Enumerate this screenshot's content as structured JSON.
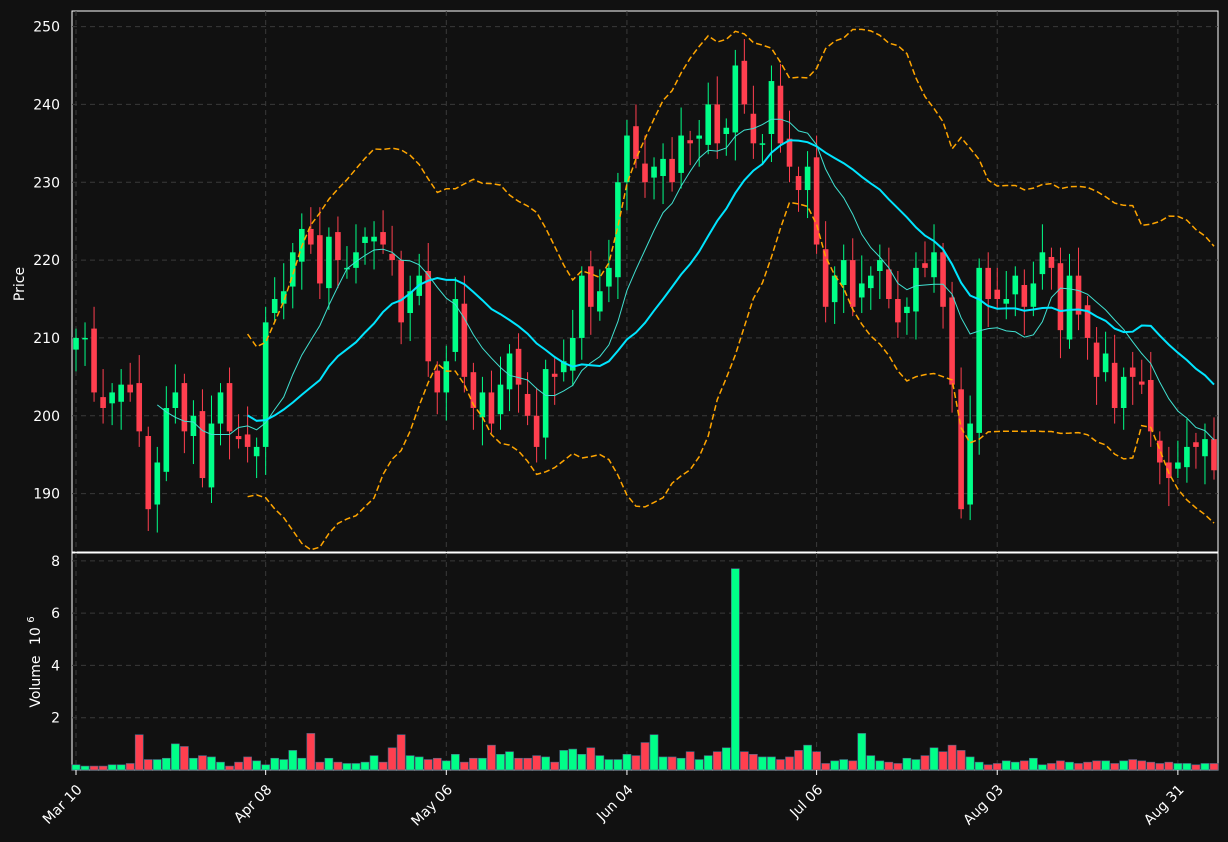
{
  "chart_data": [
    {
      "type": "candlestick",
      "panel": "price",
      "ylabel": "Price",
      "ylim": [
        182.5,
        252
      ],
      "yticks": [
        190,
        200,
        210,
        220,
        230,
        240,
        250
      ],
      "xtick_labels": [
        "Mar 10",
        "Apr 08",
        "May 06",
        "Jun 04",
        "Jul 06",
        "Aug 03",
        "Aug 31"
      ],
      "xtick_indices": [
        0,
        21,
        41,
        61,
        82,
        102,
        122
      ],
      "grid": true,
      "colors": {
        "up": "#00ff88",
        "down": "#ff3f4f",
        "ma_fast": "#40e0d0",
        "ma_slow": "#00e5ff",
        "bands": "#ffa500"
      },
      "ohlc_close_series": [
        210,
        210,
        203,
        201,
        203,
        204,
        203,
        198,
        188,
        194,
        201,
        203,
        198,
        200,
        192,
        199,
        203,
        198,
        197,
        196,
        196,
        212,
        215,
        216,
        221,
        224,
        222,
        217,
        223,
        220,
        219,
        221,
        223,
        223,
        222,
        220,
        212,
        216,
        218,
        207,
        203,
        207,
        215,
        205,
        201,
        203,
        199,
        204,
        208,
        204,
        200,
        196,
        206,
        205,
        207,
        210,
        218,
        214,
        216,
        219,
        230,
        236,
        233,
        230,
        232,
        233,
        230,
        236,
        235,
        236,
        240,
        235,
        237,
        245,
        240,
        235,
        235,
        243,
        235,
        232,
        229,
        232,
        222,
        214,
        218,
        220,
        214,
        217,
        218,
        220,
        215,
        212,
        214,
        219,
        219,
        221,
        214,
        204,
        188,
        199,
        219,
        215,
        215,
        215,
        218,
        214,
        217,
        221,
        219,
        211,
        218,
        213,
        210,
        205,
        208,
        201,
        205,
        205,
        204,
        198,
        194,
        192,
        194,
        196,
        196,
        197,
        193
      ]
    },
    {
      "type": "bar",
      "panel": "volume",
      "ylabel": "Volume",
      "yscale_label": "10",
      "yscale_exponent": "6",
      "ylim": [
        0,
        8.3
      ],
      "yticks": [
        2,
        4,
        6,
        8
      ],
      "grid": true,
      "volumes": [
        0.2,
        0.15,
        0.15,
        0.15,
        0.2,
        0.2,
        0.25,
        1.35,
        0.4,
        0.4,
        0.45,
        1.0,
        0.9,
        0.45,
        0.55,
        0.5,
        0.3,
        0.15,
        0.3,
        0.5,
        0.35,
        0.2,
        0.45,
        0.4,
        0.75,
        0.45,
        1.4,
        0.3,
        0.45,
        0.3,
        0.25,
        0.25,
        0.3,
        0.55,
        0.3,
        0.85,
        1.35,
        0.55,
        0.5,
        0.4,
        0.45,
        0.35,
        0.6,
        0.3,
        0.45,
        0.45,
        0.95,
        0.6,
        0.7,
        0.45,
        0.45,
        0.55,
        0.5,
        0.3,
        0.75,
        0.8,
        0.6,
        0.85,
        0.55,
        0.4,
        0.4,
        0.6,
        0.55,
        1.05,
        1.35,
        0.5,
        0.5,
        0.45,
        0.7,
        0.4,
        0.55,
        0.7,
        0.85,
        7.7,
        0.7,
        0.6,
        0.5,
        0.5,
        0.4,
        0.5,
        0.75,
        0.95,
        0.7,
        0.25,
        0.35,
        0.4,
        0.35,
        1.4,
        0.55,
        0.35,
        0.3,
        0.25,
        0.45,
        0.4,
        0.55,
        0.85,
        0.7,
        0.95,
        0.75,
        0.5,
        0.3,
        0.2,
        0.25,
        0.35,
        0.3,
        0.35,
        0.45,
        0.2,
        0.25,
        0.35,
        0.3,
        0.25,
        0.3,
        0.35,
        0.35,
        0.25,
        0.35,
        0.4,
        0.35,
        0.3,
        0.25,
        0.3,
        0.25,
        0.25,
        0.2,
        0.25,
        0.25
      ]
    }
  ]
}
